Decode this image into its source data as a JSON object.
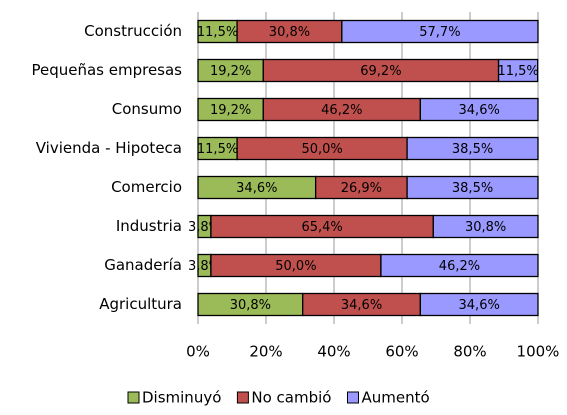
{
  "chart_data": {
    "type": "bar",
    "orientation": "horizontal",
    "stacked": true,
    "categories": [
      "Construcción",
      "Pequeñas empresas",
      "Consumo",
      "Vivienda - Hipoteca",
      "Comercio",
      "Industria",
      "Ganadería",
      "Agricultura"
    ],
    "series": [
      {
        "name": "Disminuyó",
        "color": "#9bbb59",
        "values": [
          11.5,
          19.2,
          19.2,
          11.5,
          34.6,
          3.8,
          3.8,
          30.8
        ],
        "value_labels": [
          "11,5%",
          "19,2%",
          "19,2%",
          "11,5%",
          "34,6%",
          "3,8%",
          "3,8%",
          "30,8%"
        ]
      },
      {
        "name": "No cambió",
        "color": "#c0504d",
        "values": [
          30.8,
          69.2,
          46.2,
          50.0,
          26.9,
          65.4,
          50.0,
          34.6
        ],
        "value_labels": [
          "30,8%",
          "69,2%",
          "46,2%",
          "50,0%",
          "26,9%",
          "65,4%",
          "50,0%",
          "34,6%"
        ]
      },
      {
        "name": "Aumentó",
        "color": "#9999ff",
        "values": [
          57.7,
          11.5,
          34.6,
          38.5,
          38.5,
          30.8,
          46.2,
          34.6
        ],
        "value_labels": [
          "57,7%",
          "11,5%",
          "34,6%",
          "38,5%",
          "38,5%",
          "30,8%",
          "46,2%",
          "34,6%"
        ]
      }
    ],
    "xlim": [
      0,
      100
    ],
    "xticks": [
      {
        "value": 0,
        "label": "0%"
      },
      {
        "value": 20,
        "label": "20%"
      },
      {
        "value": 40,
        "label": "40%"
      },
      {
        "value": 60,
        "label": "60%"
      },
      {
        "value": 80,
        "label": "80%"
      },
      {
        "value": 100,
        "label": "100%"
      }
    ],
    "grid": true,
    "legend": "bottom"
  }
}
